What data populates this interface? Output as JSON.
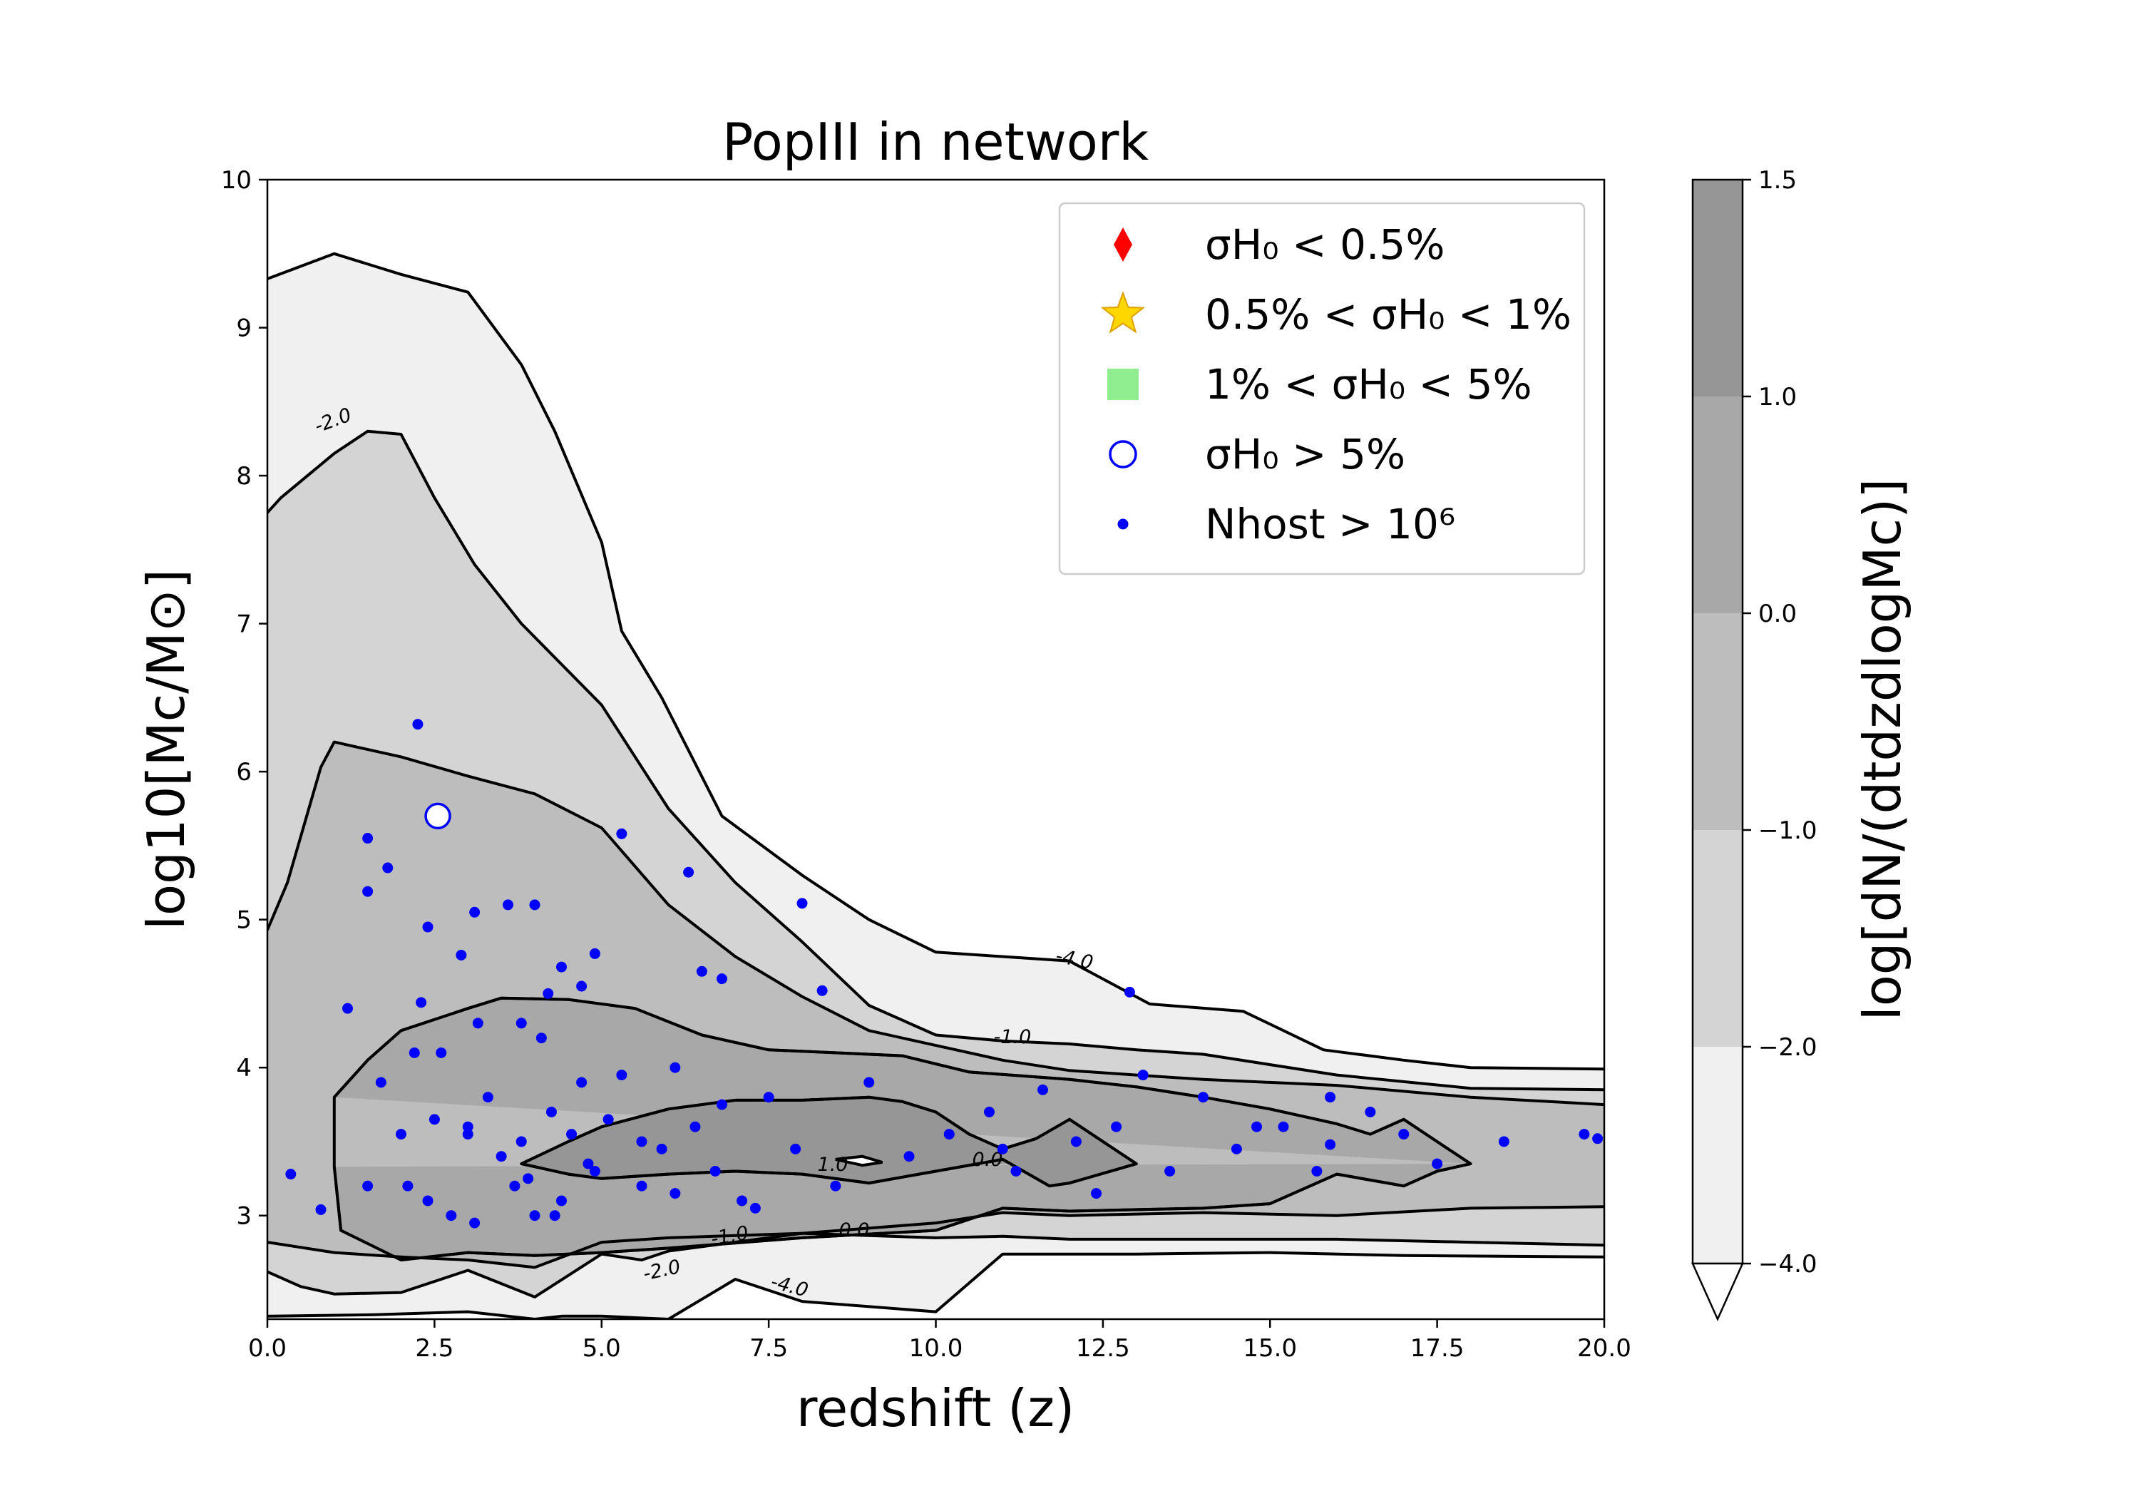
{
  "chart_data": {
    "type": "scatter",
    "title": "PopIII in network",
    "xlabel": "redshift (z)",
    "ylabel": "log10[Mc/M⊙]",
    "xlim": [
      0,
      20
    ],
    "ylim": [
      2.3,
      10
    ],
    "xticks": [
      "0.0",
      "2.5",
      "5.0",
      "7.5",
      "10.0",
      "12.5",
      "15.0",
      "17.5",
      "20.0"
    ],
    "yticks": [
      "3",
      "4",
      "5",
      "6",
      "7",
      "8",
      "9",
      "10"
    ],
    "colorbar": {
      "label": "log[dN/(dtdzdlogMc)]",
      "ticks": [
        "1.5",
        "1.0",
        "0.0",
        "−1.0",
        "−2.0",
        "−4.0"
      ],
      "levels": [
        -4.0,
        -2.0,
        -1.0,
        0.0,
        1.0,
        1.5
      ],
      "colors": [
        "#f0f0f0",
        "#d4d4d4",
        "#bdbdbd",
        "#a8a8a8",
        "#969696",
        "#858585"
      ],
      "extend": "min"
    },
    "contour_labels": [
      {
        "text": "-2.0"
      },
      {
        "text": "-4.0"
      },
      {
        "text": "-1.0"
      },
      {
        "text": "0.0"
      },
      {
        "text": "-1.0"
      },
      {
        "text": "-2.0"
      },
      {
        "text": "-4.0"
      },
      {
        "text": "1.0"
      },
      {
        "text": "0.0"
      }
    ],
    "contours": [
      {
        "level": -4.0,
        "fill": "#f0f0f0",
        "upper": [
          [
            0,
            9.33
          ],
          [
            1,
            9.5
          ],
          [
            2,
            9.36
          ],
          [
            3,
            9.24
          ],
          [
            3.8,
            8.75
          ],
          [
            4.3,
            8.3
          ],
          [
            5.0,
            7.55
          ],
          [
            5.3,
            6.95
          ],
          [
            5.9,
            6.5
          ],
          [
            6.8,
            5.7
          ],
          [
            8,
            5.3
          ],
          [
            9,
            5.0
          ],
          [
            10,
            4.78
          ],
          [
            11,
            4.75
          ],
          [
            12,
            4.72
          ],
          [
            13.2,
            4.43
          ],
          [
            14.6,
            4.38
          ],
          [
            15.8,
            4.12
          ],
          [
            17,
            4.05
          ],
          [
            18,
            4.0
          ],
          [
            20,
            3.99
          ]
        ],
        "lower": [
          [
            0,
            2.32
          ],
          [
            1.6,
            2.33
          ],
          [
            3,
            2.35
          ],
          [
            4,
            2.3
          ],
          [
            4.4,
            2.32
          ],
          [
            5,
            2.32
          ],
          [
            6,
            2.3
          ],
          [
            7,
            2.57
          ],
          [
            8,
            2.42
          ],
          [
            10,
            2.35
          ],
          [
            11,
            2.74
          ],
          [
            13,
            2.74
          ],
          [
            15,
            2.75
          ],
          [
            17,
            2.73
          ],
          [
            20,
            2.72
          ]
        ]
      },
      {
        "level": -2.0,
        "fill": "#d4d4d4",
        "upper": [
          [
            0,
            7.75
          ],
          [
            0.2,
            7.85
          ],
          [
            1,
            8.15
          ],
          [
            1.5,
            8.3
          ],
          [
            2,
            8.28
          ],
          [
            2.5,
            7.85
          ],
          [
            3.1,
            7.4
          ],
          [
            3.8,
            7.0
          ],
          [
            5,
            6.45
          ],
          [
            6,
            5.75
          ],
          [
            7,
            5.25
          ],
          [
            8,
            4.85
          ],
          [
            9,
            4.42
          ],
          [
            10,
            4.22
          ],
          [
            11,
            4.18
          ],
          [
            12,
            4.16
          ],
          [
            13,
            4.12
          ],
          [
            14,
            4.09
          ],
          [
            16,
            3.95
          ],
          [
            18,
            3.86
          ],
          [
            20,
            3.85
          ]
        ],
        "lower": [
          [
            0,
            2.62
          ],
          [
            0.5,
            2.52
          ],
          [
            1,
            2.47
          ],
          [
            2,
            2.48
          ],
          [
            3,
            2.63
          ],
          [
            4,
            2.45
          ],
          [
            5,
            2.74
          ],
          [
            5.6,
            2.7
          ],
          [
            6,
            2.76
          ],
          [
            8,
            2.88
          ],
          [
            10,
            2.85
          ],
          [
            11,
            2.86
          ],
          [
            12,
            2.84
          ],
          [
            14,
            2.84
          ],
          [
            16,
            2.84
          ],
          [
            18,
            2.82
          ],
          [
            20,
            2.8
          ]
        ]
      },
      {
        "level": -1.0,
        "fill": "#bdbdbd",
        "upper": [
          [
            0,
            4.93
          ],
          [
            0.3,
            5.25
          ],
          [
            0.8,
            6.03
          ],
          [
            1,
            6.2
          ],
          [
            2,
            6.1
          ],
          [
            3,
            5.97
          ],
          [
            4,
            5.85
          ],
          [
            5,
            5.62
          ],
          [
            6,
            5.1
          ],
          [
            7,
            4.75
          ],
          [
            8,
            4.48
          ],
          [
            9,
            4.25
          ],
          [
            10,
            4.15
          ],
          [
            11,
            4.05
          ],
          [
            12,
            3.98
          ],
          [
            13,
            3.95
          ],
          [
            14,
            3.92
          ],
          [
            16,
            3.88
          ],
          [
            18,
            3.8
          ],
          [
            20,
            3.75
          ]
        ],
        "lower": [
          [
            0,
            2.82
          ],
          [
            1,
            2.75
          ],
          [
            2,
            2.72
          ],
          [
            3,
            2.7
          ],
          [
            4,
            2.65
          ],
          [
            5,
            2.82
          ],
          [
            6,
            2.85
          ],
          [
            8,
            2.88
          ],
          [
            10,
            2.95
          ],
          [
            11,
            3.02
          ],
          [
            12,
            3.0
          ],
          [
            14,
            3.02
          ],
          [
            16,
            3.0
          ],
          [
            18,
            3.05
          ],
          [
            20,
            3.06
          ]
        ]
      },
      {
        "level": 0.0,
        "fill": "#a8a8a8",
        "upper": [
          [
            1,
            3.8
          ],
          [
            1.5,
            4.05
          ],
          [
            2,
            4.25
          ],
          [
            3,
            4.4
          ],
          [
            3.5,
            4.47
          ],
          [
            4.5,
            4.46
          ],
          [
            5.5,
            4.4
          ],
          [
            6.5,
            4.22
          ],
          [
            7.5,
            4.12
          ],
          [
            8.5,
            4.1
          ],
          [
            9.5,
            4.08
          ],
          [
            10.5,
            3.97
          ],
          [
            12,
            3.92
          ],
          [
            13,
            3.87
          ],
          [
            14,
            3.8
          ],
          [
            15,
            3.72
          ],
          [
            16,
            3.62
          ],
          [
            16.5,
            3.55
          ],
          [
            17,
            3.65
          ],
          [
            17.5,
            3.5
          ],
          [
            18,
            3.35
          ]
        ],
        "lower": [
          [
            18,
            3.35
          ],
          [
            17.5,
            3.3
          ],
          [
            17,
            3.2
          ],
          [
            16,
            3.28
          ],
          [
            15,
            3.08
          ],
          [
            14,
            3.05
          ],
          [
            13,
            3.04
          ],
          [
            12,
            3.03
          ],
          [
            11,
            3.05
          ],
          [
            10,
            2.9
          ],
          [
            8,
            2.85
          ],
          [
            6,
            2.78
          ],
          [
            5,
            2.75
          ],
          [
            4,
            2.73
          ],
          [
            3,
            2.75
          ],
          [
            2,
            2.7
          ],
          [
            1.1,
            2.9
          ],
          [
            1,
            3.33
          ]
        ]
      },
      {
        "level": 1.0,
        "fill": "#969696",
        "upper": [
          [
            3.8,
            3.35
          ],
          [
            4.5,
            3.5
          ],
          [
            5,
            3.6
          ],
          [
            6,
            3.72
          ],
          [
            7,
            3.78
          ],
          [
            8,
            3.78
          ],
          [
            9,
            3.8
          ],
          [
            9.5,
            3.77
          ],
          [
            10,
            3.7
          ],
          [
            10.5,
            3.55
          ],
          [
            11,
            3.45
          ],
          [
            11.5,
            3.52
          ],
          [
            12,
            3.65
          ],
          [
            13,
            3.35
          ]
        ],
        "lower": [
          [
            13,
            3.35
          ],
          [
            12,
            3.22
          ],
          [
            11.7,
            3.2
          ],
          [
            11,
            3.38
          ],
          [
            10,
            3.3
          ],
          [
            9,
            3.22
          ],
          [
            8,
            3.28
          ],
          [
            7,
            3.3
          ],
          [
            6,
            3.28
          ],
          [
            5,
            3.25
          ],
          [
            4.5,
            3.28
          ],
          [
            3.8,
            3.35
          ]
        ]
      }
    ],
    "inner_islands": [
      {
        "level": 1.5,
        "points": [
          [
            8.5,
            3.38
          ],
          [
            8.9,
            3.4
          ],
          [
            9.2,
            3.36
          ],
          [
            8.9,
            3.34
          ],
          [
            8.5,
            3.38
          ]
        ]
      }
    ],
    "legend": {
      "placement": "top-right",
      "entries": [
        {
          "label": "σH₀ < 0.5%",
          "marker": "diamond",
          "color": "#ff0000"
        },
        {
          "label": "0.5% < σH₀ < 1%",
          "marker": "star",
          "color": "#ffd700"
        },
        {
          "label": "1% < σH₀ < 5%",
          "marker": "square",
          "color": "#90ee90"
        },
        {
          "label": "σH₀ > 5%",
          "marker": "open-circle",
          "color": "#0000ff"
        },
        {
          "label": "Nhost > 10⁶",
          "marker": "dot",
          "color": "#0000ff"
        }
      ]
    },
    "series": [
      {
        "name": "σH₀ > 5%",
        "marker": "open-circle",
        "color": "#0000ff",
        "x": [
          2.55
        ],
        "y": [
          5.7
        ]
      },
      {
        "name": "Nhost > 10⁶",
        "marker": "dot",
        "color": "#0000ff",
        "x": [
          2.25,
          1.5,
          1.8,
          1.5,
          2.4,
          2.9,
          3.1,
          3.6,
          4.0,
          4.2,
          4.9,
          5.3,
          6.3,
          8.0,
          4.4,
          4.7,
          3.8,
          6.5,
          6.8,
          8.3,
          12.9,
          0.35,
          0.8,
          1.2,
          1.5,
          1.7,
          2.0,
          2.1,
          2.3,
          2.4,
          2.6,
          2.75,
          3.0,
          3.1,
          3.15,
          3.3,
          3.5,
          3.7,
          3.8,
          4.0,
          4.1,
          4.25,
          4.4,
          4.55,
          4.7,
          4.9,
          5.1,
          5.3,
          5.6,
          5.9,
          6.1,
          6.4,
          6.8,
          7.1,
          7.5,
          7.9,
          8.5,
          9.0,
          9.6,
          10.2,
          10.8,
          11.2,
          11.6,
          12.1,
          12.7,
          13.1,
          13.5,
          14.0,
          14.5,
          15.2,
          15.7,
          15.9,
          16.5,
          17.0,
          17.5,
          18.5,
          19.7,
          19.9,
          2.2,
          2.5,
          3.0,
          3.9,
          4.3,
          4.8,
          5.6,
          6.1,
          6.7,
          7.3,
          11.0,
          12.4,
          14.8,
          15.9
        ],
        "y": [
          6.32,
          5.55,
          5.35,
          5.19,
          4.95,
          4.76,
          5.05,
          5.1,
          5.1,
          4.5,
          4.77,
          5.58,
          5.32,
          5.11,
          4.68,
          4.55,
          4.3,
          4.65,
          4.6,
          4.52,
          4.51,
          3.28,
          3.04,
          4.4,
          3.2,
          3.9,
          3.55,
          3.2,
          4.44,
          3.1,
          4.1,
          3.0,
          3.6,
          2.95,
          4.3,
          3.8,
          3.4,
          3.2,
          3.5,
          3.0,
          4.2,
          3.7,
          3.1,
          3.55,
          3.9,
          3.3,
          3.65,
          3.95,
          3.2,
          3.45,
          4.0,
          3.6,
          3.75,
          3.1,
          3.8,
          3.45,
          3.2,
          3.9,
          3.4,
          3.55,
          3.7,
          3.3,
          3.85,
          3.5,
          3.6,
          3.95,
          3.3,
          3.8,
          3.45,
          3.6,
          3.3,
          3.8,
          3.7,
          3.55,
          3.35,
          3.5,
          3.55,
          3.52,
          4.1,
          3.65,
          3.55,
          3.25,
          3.0,
          3.35,
          3.5,
          3.15,
          3.3,
          3.05,
          3.45,
          3.15,
          3.6,
          3.48
        ]
      }
    ]
  }
}
